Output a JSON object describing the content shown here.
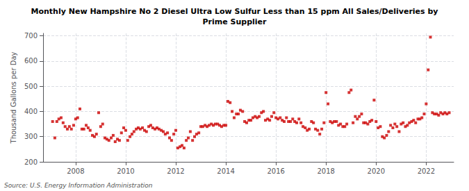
{
  "chart_data": {
    "type": "scatter",
    "title": "Monthly New Hampshire No 2 Diesel Ultra Low Sulfur Less than 15 ppm All Sales/Deliveries by\nPrime Supplier",
    "ylabel": "Thousand Gallons per Day",
    "source": "Source: U.S. Energy Information Administration",
    "color": "#cc0000",
    "marker": "square",
    "grid": true,
    "x": [
      2007.08,
      2007.17,
      2007.25,
      2007.33,
      2007.42,
      2007.5,
      2007.58,
      2007.67,
      2007.75,
      2007.83,
      2007.92,
      2008.0,
      2008.08,
      2008.17,
      2008.25,
      2008.33,
      2008.42,
      2008.5,
      2008.58,
      2008.67,
      2008.75,
      2008.83,
      2008.92,
      2009.0,
      2009.08,
      2009.17,
      2009.25,
      2009.33,
      2009.42,
      2009.5,
      2009.58,
      2009.67,
      2009.75,
      2009.83,
      2009.92,
      2010.0,
      2010.08,
      2010.17,
      2010.25,
      2010.33,
      2010.42,
      2010.5,
      2010.58,
      2010.67,
      2010.75,
      2010.83,
      2010.92,
      2011.0,
      2011.08,
      2011.17,
      2011.25,
      2011.33,
      2011.42,
      2011.5,
      2011.58,
      2011.67,
      2011.75,
      2011.83,
      2011.92,
      2012.0,
      2012.08,
      2012.17,
      2012.25,
      2012.33,
      2012.42,
      2012.5,
      2012.58,
      2012.67,
      2012.75,
      2012.83,
      2012.92,
      2013.0,
      2013.08,
      2013.17,
      2013.25,
      2013.33,
      2013.42,
      2013.5,
      2013.58,
      2013.67,
      2013.75,
      2013.83,
      2013.92,
      2014.0,
      2014.08,
      2014.17,
      2014.25,
      2014.33,
      2014.42,
      2014.5,
      2014.58,
      2014.67,
      2014.75,
      2014.83,
      2014.92,
      2015.0,
      2015.08,
      2015.17,
      2015.25,
      2015.33,
      2015.42,
      2015.5,
      2015.58,
      2015.67,
      2015.75,
      2015.83,
      2015.92,
      2016.0,
      2016.08,
      2016.17,
      2016.25,
      2016.33,
      2016.42,
      2016.5,
      2016.58,
      2016.67,
      2016.75,
      2016.83,
      2016.92,
      2017.0,
      2017.08,
      2017.17,
      2017.25,
      2017.33,
      2017.42,
      2017.5,
      2017.58,
      2017.67,
      2017.75,
      2017.83,
      2017.92,
      2018.0,
      2018.08,
      2018.17,
      2018.25,
      2018.33,
      2018.42,
      2018.5,
      2018.58,
      2018.67,
      2018.75,
      2018.83,
      2018.92,
      2019.0,
      2019.08,
      2019.17,
      2019.25,
      2019.33,
      2019.42,
      2019.5,
      2019.58,
      2019.67,
      2019.75,
      2019.83,
      2019.92,
      2020.0,
      2020.08,
      2020.17,
      2020.25,
      2020.33,
      2020.42,
      2020.5,
      2020.58,
      2020.67,
      2020.75,
      2020.83,
      2020.92,
      2021.0,
      2021.08,
      2021.17,
      2021.25,
      2021.33,
      2021.42,
      2021.5,
      2021.58,
      2021.67,
      2021.75,
      2021.83,
      2021.92,
      2022.0,
      2022.08,
      2022.17,
      2022.25,
      2022.33,
      2022.42,
      2022.5,
      2022.58,
      2022.67,
      2022.75,
      2022.83,
      2022.92
    ],
    "values": [
      360,
      295,
      360,
      370,
      375,
      355,
      340,
      330,
      340,
      330,
      345,
      370,
      375,
      410,
      330,
      330,
      345,
      335,
      325,
      305,
      300,
      310,
      395,
      340,
      350,
      295,
      290,
      285,
      295,
      305,
      280,
      290,
      285,
      315,
      335,
      325,
      285,
      300,
      310,
      320,
      330,
      335,
      330,
      335,
      325,
      320,
      340,
      345,
      335,
      330,
      335,
      330,
      325,
      320,
      310,
      315,
      295,
      285,
      310,
      325,
      255,
      260,
      265,
      255,
      285,
      295,
      320,
      285,
      300,
      310,
      315,
      340,
      340,
      345,
      340,
      345,
      350,
      345,
      350,
      350,
      345,
      340,
      345,
      345,
      440,
      435,
      400,
      375,
      390,
      390,
      405,
      400,
      360,
      355,
      365,
      365,
      375,
      380,
      375,
      380,
      395,
      400,
      365,
      370,
      365,
      380,
      395,
      375,
      370,
      375,
      365,
      360,
      375,
      360,
      360,
      370,
      360,
      355,
      370,
      355,
      340,
      335,
      325,
      330,
      360,
      355,
      330,
      325,
      310,
      330,
      355,
      475,
      430,
      360,
      355,
      360,
      360,
      345,
      350,
      340,
      340,
      350,
      475,
      485,
      355,
      380,
      370,
      380,
      390,
      355,
      355,
      350,
      360,
      365,
      445,
      360,
      335,
      340,
      300,
      295,
      305,
      320,
      345,
      335,
      350,
      340,
      320,
      350,
      355,
      340,
      345,
      355,
      360,
      365,
      355,
      370,
      370,
      375,
      390,
      430,
      565,
      695,
      395,
      390,
      390,
      385,
      395,
      390,
      395,
      390,
      395
    ],
    "xlim": [
      2006.7,
      2023.1
    ],
    "xticks": [
      2008,
      2010,
      2012,
      2014,
      2016,
      2018,
      2020,
      2022
    ],
    "ylim": [
      200,
      710
    ],
    "yticks": [
      200,
      300,
      400,
      500,
      600,
      700
    ]
  }
}
